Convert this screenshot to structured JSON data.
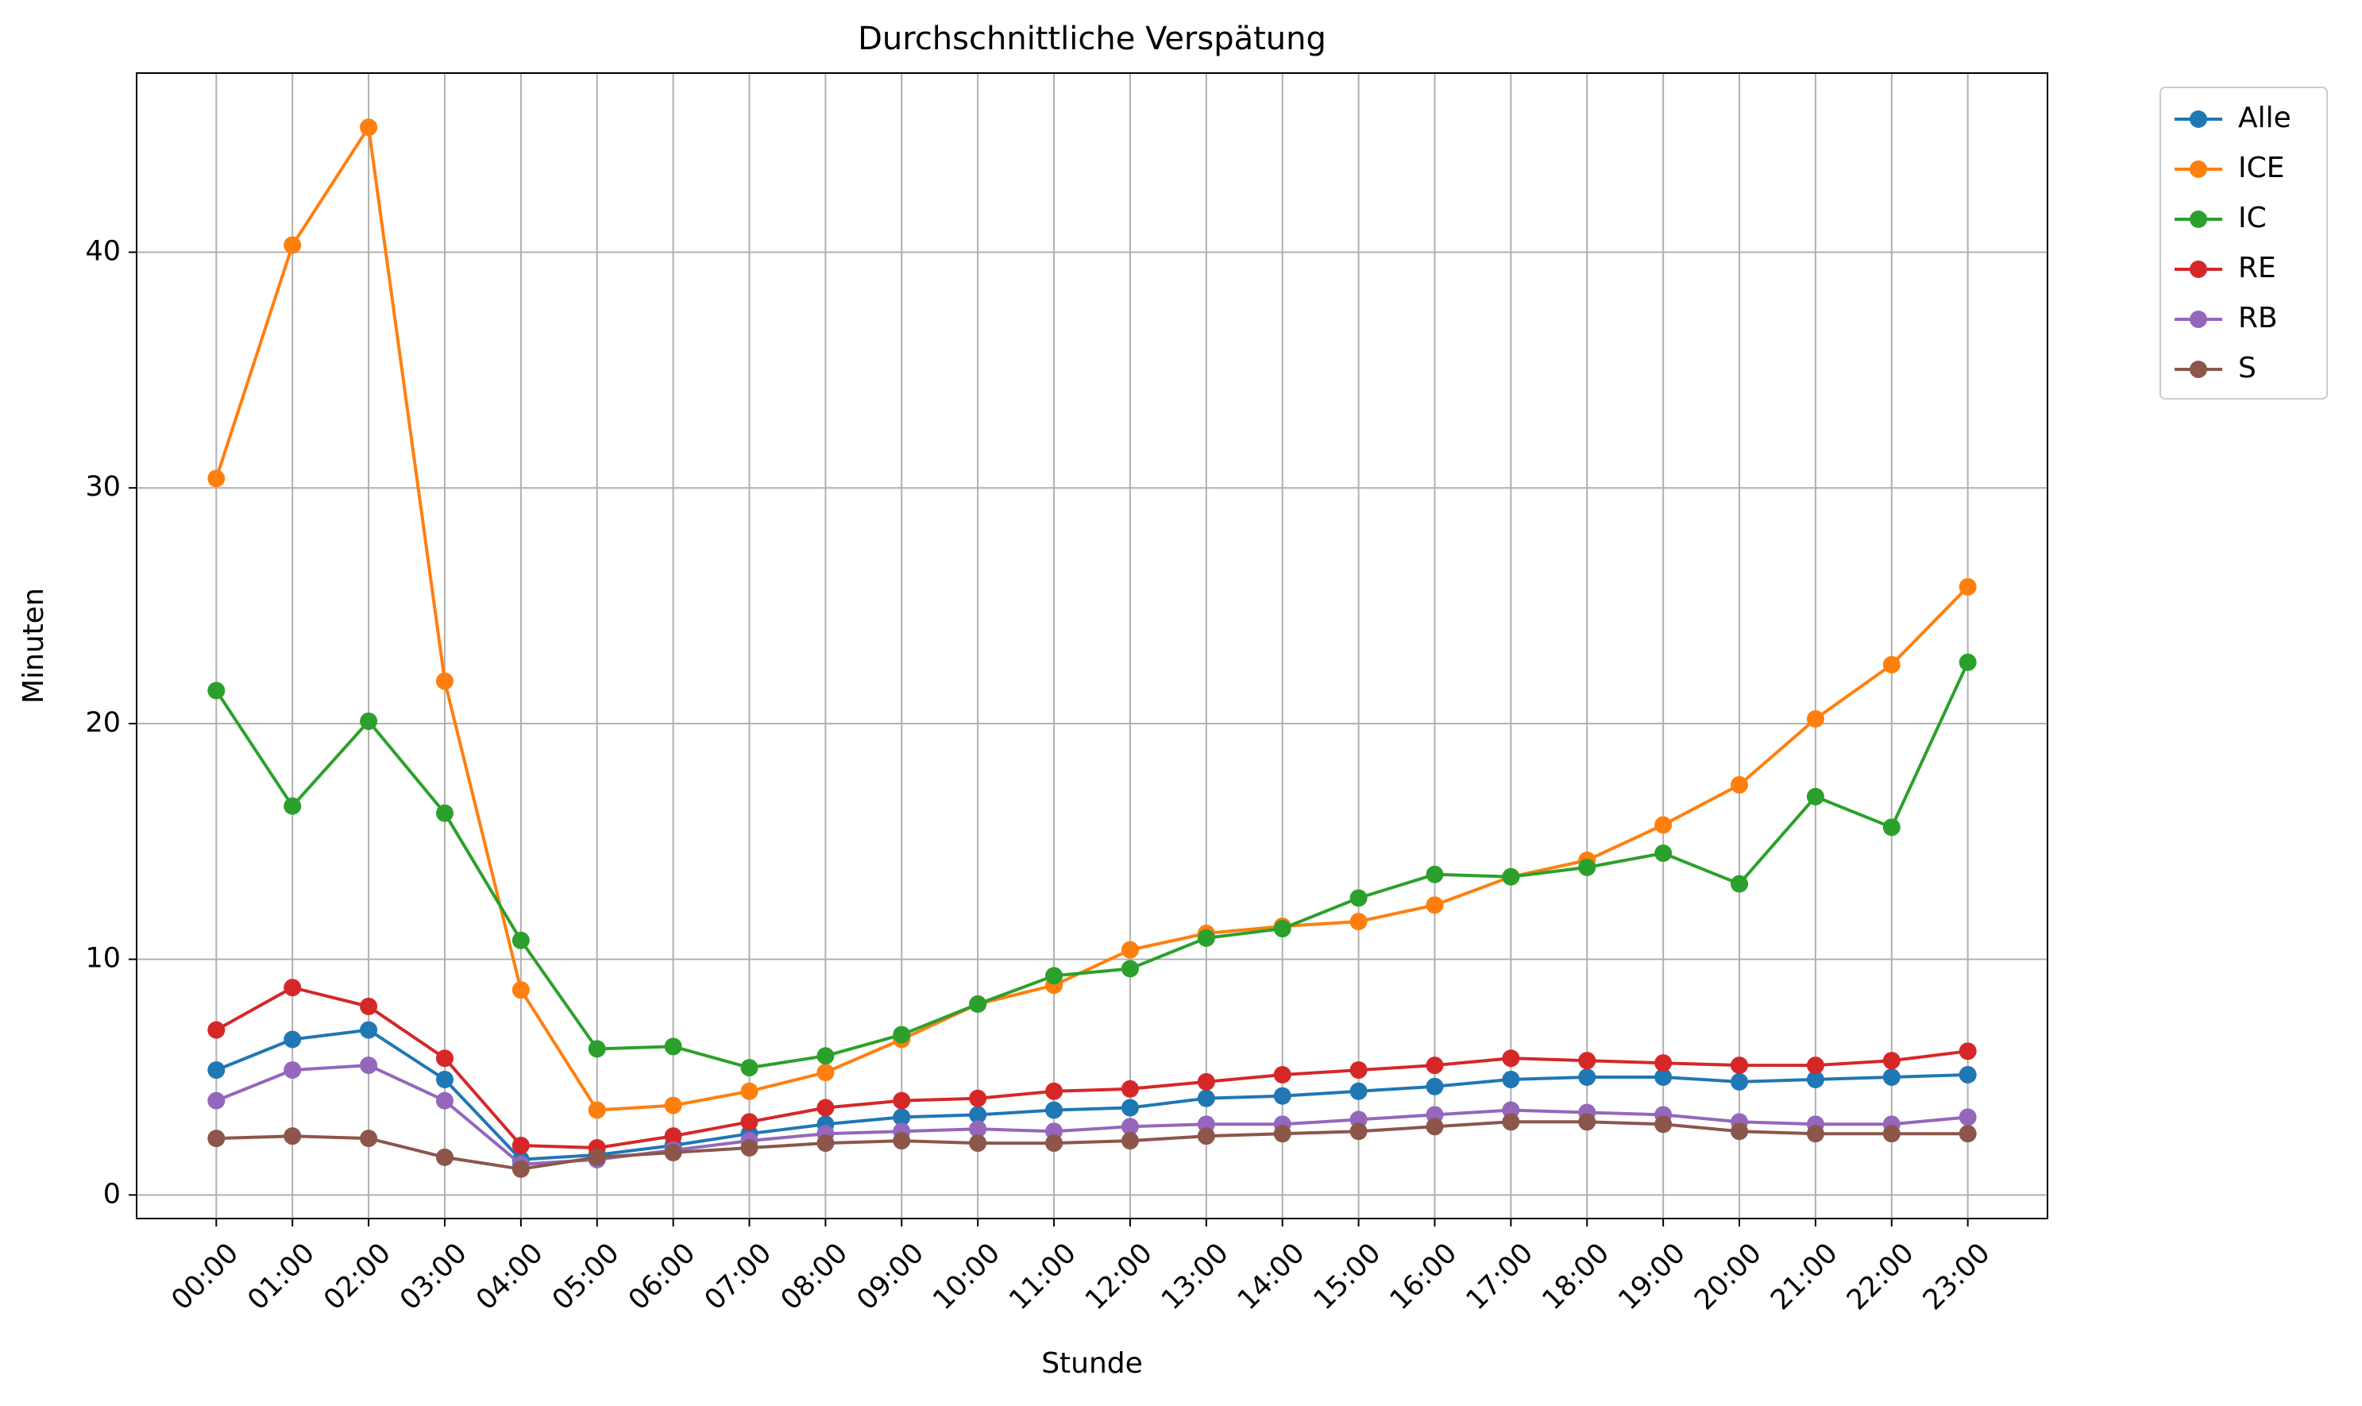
{
  "chart_data": {
    "type": "line",
    "title": "Durchschnittliche Verspätung",
    "xlabel": "Stunde",
    "ylabel": "Minuten",
    "categories": [
      "00:00",
      "01:00",
      "02:00",
      "03:00",
      "04:00",
      "05:00",
      "06:00",
      "07:00",
      "08:00",
      "09:00",
      "10:00",
      "11:00",
      "12:00",
      "13:00",
      "14:00",
      "15:00",
      "16:00",
      "17:00",
      "18:00",
      "19:00",
      "20:00",
      "21:00",
      "22:00",
      "23:00"
    ],
    "ylim": [
      -1,
      47.6
    ],
    "yticks": [
      0,
      10,
      20,
      30,
      40
    ],
    "grid": true,
    "legend_position": "outside top-right",
    "series": [
      {
        "name": "Alle",
        "color": "#1f77b4",
        "values": [
          5.3,
          6.6,
          7.0,
          4.9,
          1.5,
          1.7,
          2.1,
          2.6,
          3.0,
          3.3,
          3.4,
          3.6,
          3.7,
          4.1,
          4.2,
          4.4,
          4.6,
          4.9,
          5.0,
          5.0,
          4.8,
          4.9,
          5.0,
          5.1
        ]
      },
      {
        "name": "ICE",
        "color": "#ff7f0e",
        "values": [
          30.4,
          40.3,
          45.3,
          21.8,
          8.7,
          3.6,
          3.8,
          4.4,
          5.2,
          6.6,
          8.1,
          8.9,
          10.4,
          11.1,
          11.4,
          11.6,
          12.3,
          13.5,
          14.2,
          15.7,
          17.4,
          20.2,
          22.5,
          25.8
        ]
      },
      {
        "name": "IC",
        "color": "#2ca02c",
        "values": [
          21.4,
          16.5,
          20.1,
          16.2,
          10.8,
          6.2,
          6.3,
          5.4,
          5.9,
          6.8,
          8.1,
          9.3,
          9.6,
          10.9,
          11.3,
          12.6,
          13.6,
          13.5,
          13.9,
          14.5,
          13.2,
          16.9,
          15.6,
          22.6
        ]
      },
      {
        "name": "RE",
        "color": "#d62728",
        "values": [
          7.0,
          8.8,
          8.0,
          5.8,
          2.1,
          2.0,
          2.5,
          3.1,
          3.7,
          4.0,
          4.1,
          4.4,
          4.5,
          4.8,
          5.1,
          5.3,
          5.5,
          5.8,
          5.7,
          5.6,
          5.5,
          5.5,
          5.7,
          6.1
        ]
      },
      {
        "name": "RB",
        "color": "#9467bd",
        "values": [
          4.0,
          5.3,
          5.5,
          4.0,
          1.3,
          1.5,
          1.9,
          2.3,
          2.6,
          2.7,
          2.8,
          2.7,
          2.9,
          3.0,
          3.0,
          3.2,
          3.4,
          3.6,
          3.5,
          3.4,
          3.1,
          3.0,
          3.0,
          3.3
        ]
      },
      {
        "name": "S",
        "color": "#8c564b",
        "values": [
          2.4,
          2.5,
          2.4,
          1.6,
          1.1,
          1.6,
          1.8,
          2.0,
          2.2,
          2.3,
          2.2,
          2.2,
          2.3,
          2.5,
          2.6,
          2.7,
          2.9,
          3.1,
          3.1,
          3.0,
          2.7,
          2.6,
          2.6,
          2.6
        ]
      }
    ]
  },
  "colors": {
    "axes": "#000000",
    "grid": "#b0b0b0",
    "legend_border": "#cccccc"
  }
}
